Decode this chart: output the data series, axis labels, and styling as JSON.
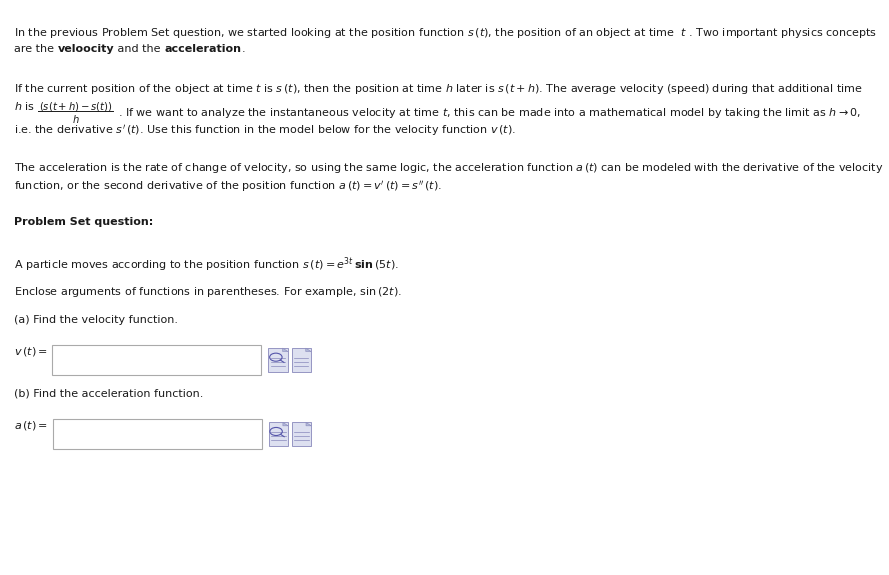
{
  "figsize": [
    8.89,
    5.75
  ],
  "dpi": 100,
  "bg": "#ffffff",
  "fc": "#1a1a1a",
  "fs": 8.0,
  "ml": 0.016,
  "lh": 0.038,
  "para1_l1": "In the previous Problem Set question, we started looking at the position function $s\\,(t)$, the position of an object at time  $t$ . Two important physics concepts",
  "para1_l2_a": "are the ",
  "para1_l2_b": "veloocity",
  "para1_l2_c": " and the ",
  "para1_l2_d": "acceleration",
  "para1_l2_e": ".",
  "para2_l1": "If the current position of the object at time $t$ is $s\\,(t)$, then the position at time $h$ later is $s\\,(t + h)$. The average velocity (speed) during that additional time",
  "para2_l2_a": "$h$ is",
  "para2_l2_num": "$(s(t+h)-s(t))$",
  "para2_l2_den": "$h$",
  "para2_l2_rest": ". If we want to analyze the instantaneous velocity at time $t$, this can be made into a mathematical model by taking the limit as $h \\to 0,$",
  "para2_l3": "i.e. the derivative $s'\\,(t)$. Use this function in the model below for the velocity function $v\\,(t)$.",
  "para3_l1": "The acceleration is the rate of change of velocity, so using the same logic, the acceleration function $a\\,(t)$ can be modeled with the derivative of the velocity",
  "para3_l2": "function, or the second derivative of the position function $a\\,(t) = v'\\,(t) = s''\\,(t)$.",
  "prob_header": "Problem Set question:",
  "prob_stmt": "A particle moves according to the position function $s\\,(t) = e^{3t}\\,\\mathbf{sin}\\,(5t)$.",
  "enclose": "Enclose arguments of functions in parentheses. For example, $\\mathrm{sin}\\,(2t)$.",
  "part_a": "(a) Find the velocity function.",
  "vt_label": "$v\\,(t) =$",
  "part_b": "(b) Find the acceleration function.",
  "at_label": "$a\\,(t) =$"
}
